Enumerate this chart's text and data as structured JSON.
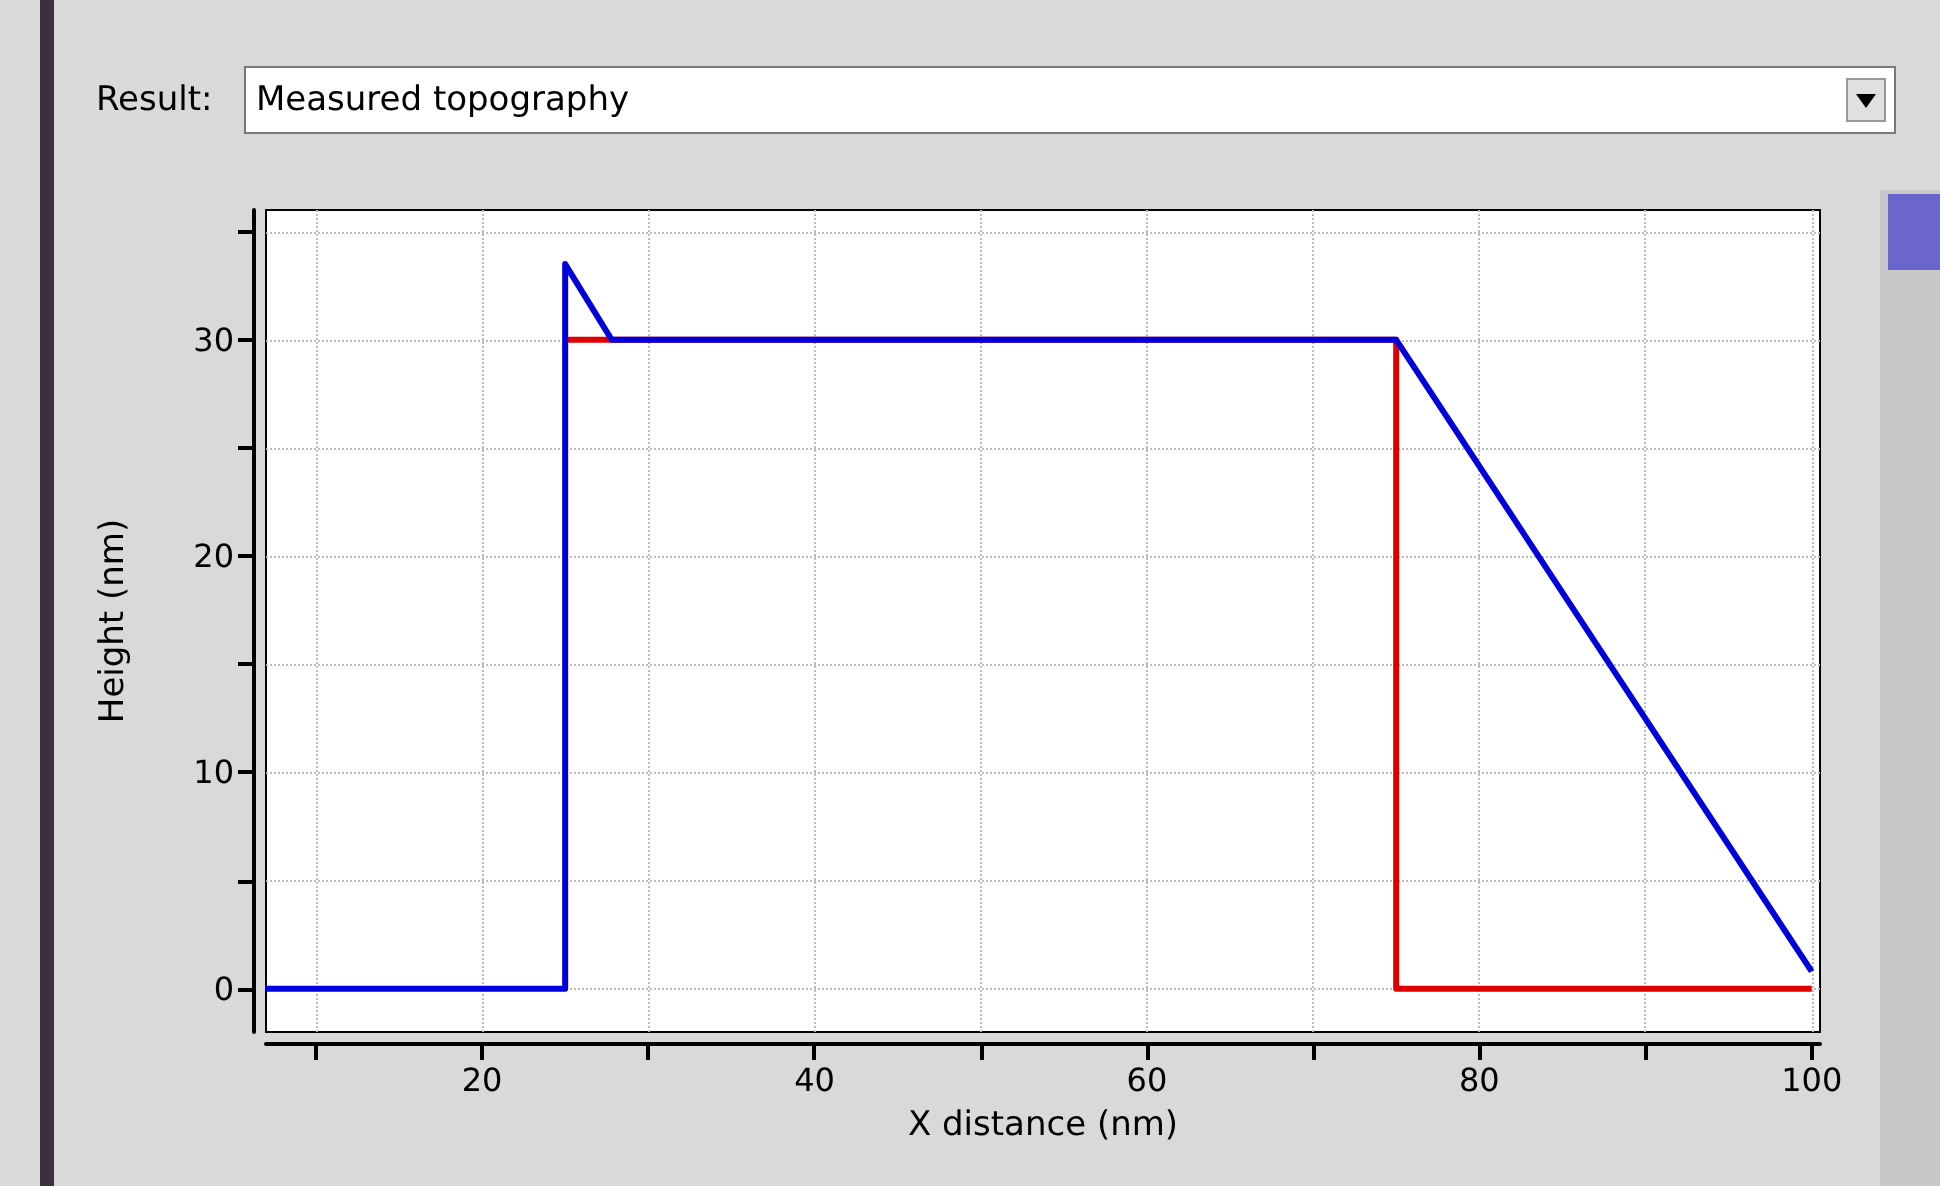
{
  "chart_data": {
    "type": "line",
    "xlabel": "X distance (nm)",
    "ylabel": "Height (nm)",
    "annotations": [
      "Result:",
      "Measured topography"
    ],
    "xlim": [
      7,
      100.5
    ],
    "ylim": [
      -2,
      36
    ],
    "xticks": [
      {
        "value": 10,
        "label": null
      },
      20,
      {
        "value": 30,
        "label": null
      },
      40,
      {
        "value": 50,
        "label": null
      },
      60,
      {
        "value": 70,
        "label": null
      },
      80,
      {
        "value": 90,
        "label": null
      },
      100
    ],
    "yticks": [
      0,
      {
        "value": 5,
        "label": null
      },
      10,
      {
        "value": 15,
        "label": null
      },
      20,
      {
        "value": 25,
        "label": null
      },
      30,
      {
        "value": 35,
        "label": null
      }
    ],
    "grid": true,
    "marker": "none",
    "line_style": "solid",
    "series": [
      {
        "color": "#dd0000",
        "x": [
          25,
          75,
          75,
          100
        ],
        "values": [
          30,
          30,
          0,
          0
        ]
      },
      {
        "color": "#0000dd",
        "x": [
          7,
          25,
          25,
          27.8,
          75,
          100
        ],
        "values": [
          0,
          0,
          33.5,
          30,
          30,
          0.8
        ]
      }
    ]
  }
}
